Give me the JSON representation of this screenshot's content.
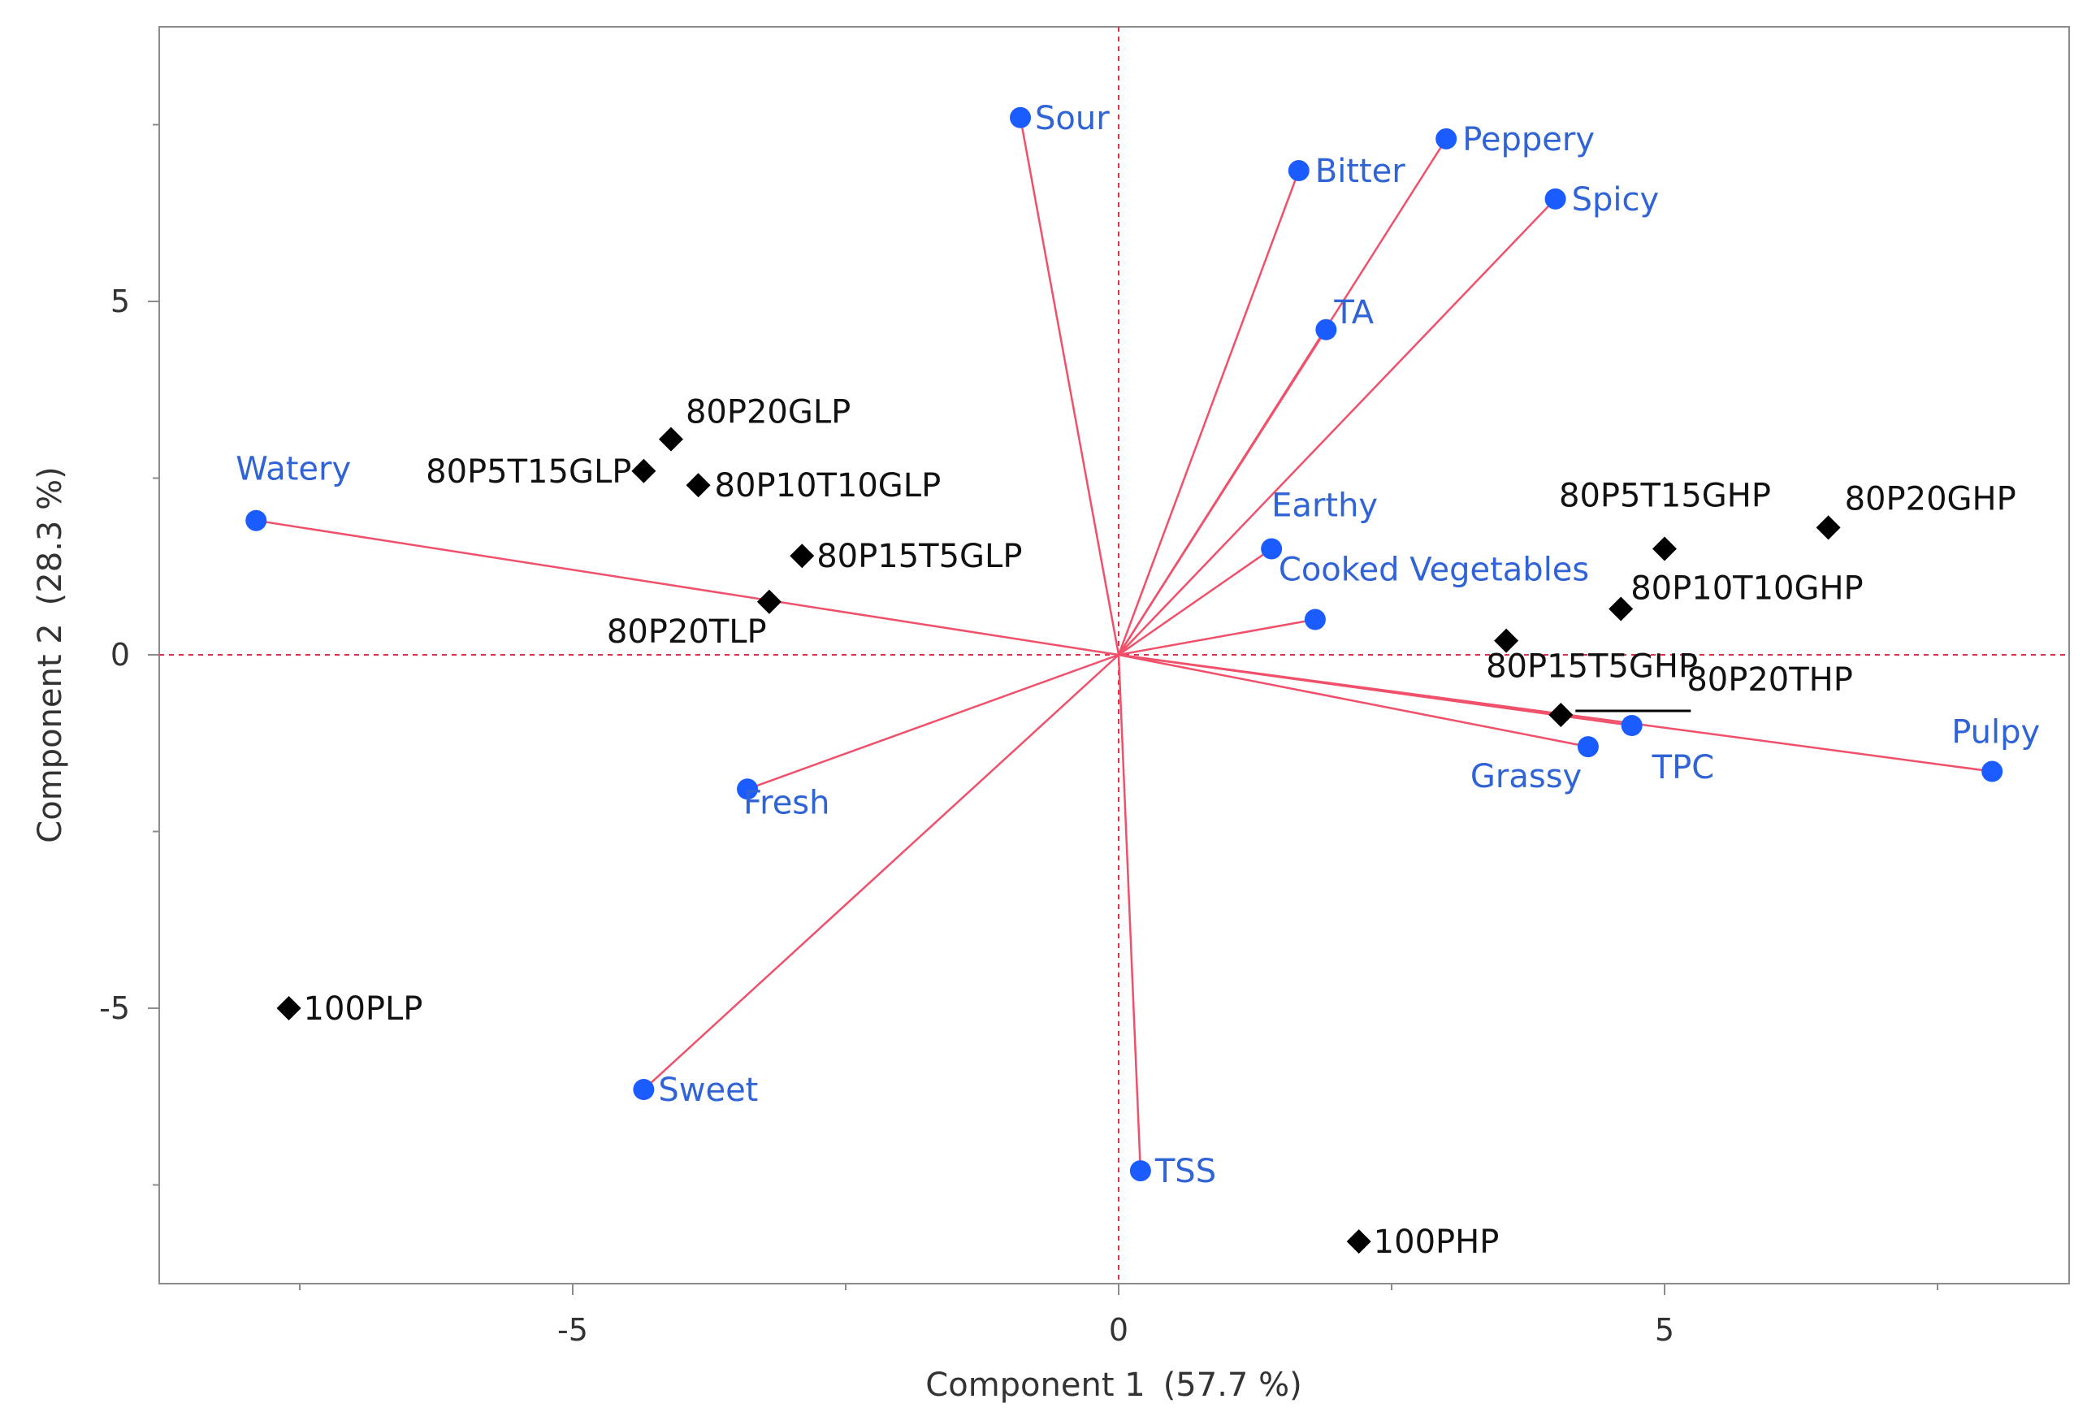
{
  "chart_data": {
    "type": "scatter",
    "subtype": "pca-biplot",
    "xlabel": "Component 1",
    "xlabel_pct": "(57.7 %)",
    "ylabel": "Component 2",
    "ylabel_pct": "(28.3 %)",
    "xlim": [
      -8.9,
      8.9
    ],
    "ylim": [
      -8.9,
      8.9
    ],
    "xticks": [
      -5,
      0,
      5
    ],
    "yticks": [
      -5,
      0,
      5
    ],
    "grid": false,
    "colors": {
      "observation_marker": "#000000",
      "variable_marker": "#1a5cff",
      "loading_line": "#f0506a",
      "origin_line": "#e0304a",
      "variable_text": "#2f63d6",
      "observation_text": "#111111"
    },
    "observations": [
      {
        "label": "80P20GLP",
        "x": -4.1,
        "y": 3.05
      },
      {
        "label": "80P5T15GLP",
        "x": -4.35,
        "y": 2.6
      },
      {
        "label": "80P10T10GLP",
        "x": -3.85,
        "y": 2.4
      },
      {
        "label": "80P15T5GLP",
        "x": -2.9,
        "y": 1.4
      },
      {
        "label": "80P20TLP",
        "x": -3.2,
        "y": 0.75
      },
      {
        "label": "100PLP",
        "x": -7.6,
        "y": -5.0
      },
      {
        "label": "100PHP",
        "x": 2.2,
        "y": -8.3
      },
      {
        "label": "80P5T15GHP",
        "x": 5.0,
        "y": 1.5
      },
      {
        "label": "80P20GHP",
        "x": 6.5,
        "y": 1.8
      },
      {
        "label": "80P10T10GHP",
        "x": 4.6,
        "y": 0.65
      },
      {
        "label": "80P15T5GHP",
        "x": 3.55,
        "y": 0.2
      },
      {
        "label": "80P20THP",
        "x": 4.05,
        "y": -0.85
      }
    ],
    "variables": [
      {
        "label": "Sour",
        "x": -0.9,
        "y": 7.6
      },
      {
        "label": "Bitter",
        "x": 1.65,
        "y": 6.85
      },
      {
        "label": "Peppery",
        "x": 3.0,
        "y": 7.3
      },
      {
        "label": "Spicy",
        "x": 4.0,
        "y": 6.45
      },
      {
        "label": "TA",
        "x": 1.9,
        "y": 4.6
      },
      {
        "label": "Watery",
        "x": -7.9,
        "y": 1.9
      },
      {
        "label": "Earthy",
        "x": 1.4,
        "y": 1.5
      },
      {
        "label": "Cooked Vegetables",
        "x": 1.8,
        "y": 0.5
      },
      {
        "label": "Grassy",
        "x": 4.3,
        "y": -1.3
      },
      {
        "label": "TPC",
        "x": 4.7,
        "y": -1.0
      },
      {
        "label": "Pulpy",
        "x": 8.0,
        "y": -1.65
      },
      {
        "label": "Fresh",
        "x": -3.4,
        "y": -1.9
      },
      {
        "label": "Sweet",
        "x": -4.35,
        "y": -6.15
      },
      {
        "label": "TSS",
        "x": 0.2,
        "y": -7.3
      }
    ]
  }
}
